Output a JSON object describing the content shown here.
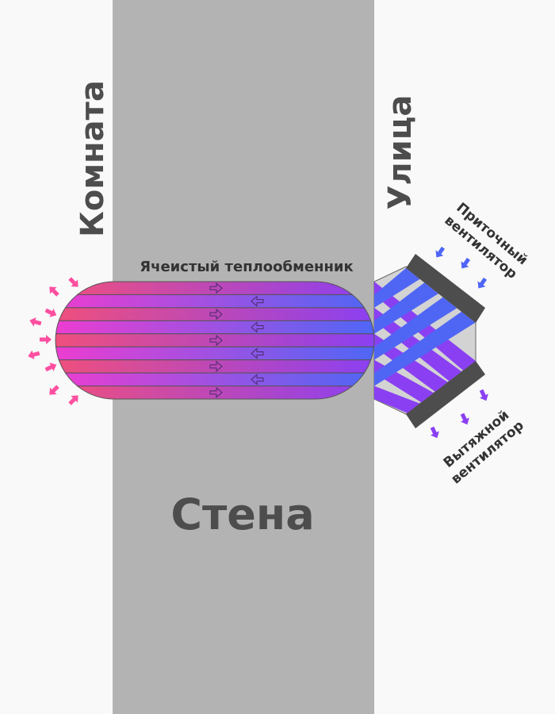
{
  "labels": {
    "room": "Комната",
    "street": "Улица",
    "wall": "Стена",
    "exchanger": "Ячеистый теплообменник",
    "supply_fan_line1": "Приточный",
    "supply_fan_line2": "вентилятор",
    "exhaust_fan_line1": "Вытяжной",
    "exhaust_fan_line2": "вентилятор"
  },
  "colors": {
    "background": "#f9f9f9",
    "wall": "#b3b3b3",
    "fan": "#4d4d4d",
    "warm_start": "#f2507a",
    "warm_end": "#8a40f2",
    "cold_start": "#f03ccf",
    "cold_end": "#4f66f5",
    "supply_air": "#4f66f5",
    "exhaust_air": "#8a40f2",
    "room_air": "#ff4fa0"
  },
  "channel_count": 9
}
